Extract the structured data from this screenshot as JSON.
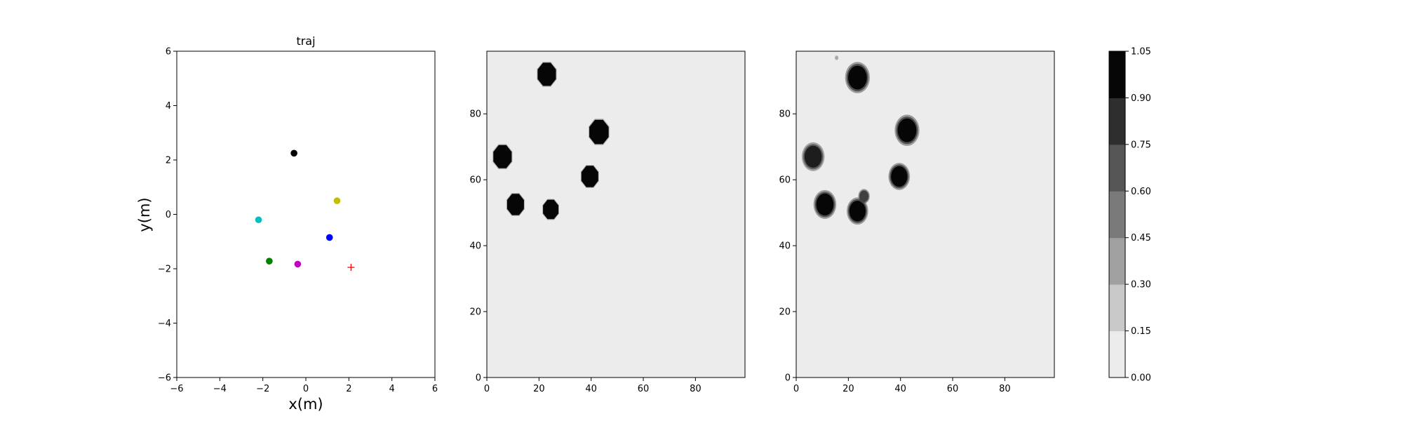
{
  "chart_data": [
    {
      "type": "scatter",
      "title": "traj",
      "xlabel": "x(m)",
      "ylabel": "y(m)",
      "xlim": [
        -6,
        6
      ],
      "ylim": [
        -6,
        6
      ],
      "xticks": [
        -6,
        -4,
        -2,
        0,
        2,
        4,
        6
      ],
      "yticks": [
        -6,
        -4,
        -2,
        0,
        2,
        4,
        6
      ],
      "grid": false,
      "points": [
        {
          "x": -0.55,
          "y": 2.25,
          "color": "#000000",
          "marker": "circle"
        },
        {
          "x": 1.45,
          "y": 0.5,
          "color": "#bfbf00",
          "marker": "circle"
        },
        {
          "x": -2.2,
          "y": -0.2,
          "color": "#00bfbf",
          "marker": "circle"
        },
        {
          "x": 1.1,
          "y": -0.85,
          "color": "#0000ff",
          "marker": "circle"
        },
        {
          "x": -1.7,
          "y": -1.72,
          "color": "#008000",
          "marker": "circle"
        },
        {
          "x": -0.38,
          "y": -1.83,
          "color": "#bf00bf",
          "marker": "circle"
        },
        {
          "x": 2.1,
          "y": -1.95,
          "color": "#ff0000",
          "marker": "plus"
        }
      ]
    },
    {
      "type": "heatmap",
      "xlim": [
        0,
        99
      ],
      "ylim": [
        0,
        99
      ],
      "xticks": [
        0,
        20,
        40,
        60,
        80
      ],
      "yticks": [
        0,
        20,
        40,
        60,
        80
      ],
      "background_value": 0.08,
      "blobs": [
        {
          "x": 23,
          "y": 92,
          "r": 3.8,
          "value": 1.0
        },
        {
          "x": 43,
          "y": 74.5,
          "r": 4.0,
          "value": 1.0
        },
        {
          "x": 6,
          "y": 67,
          "r": 3.8,
          "value": 1.0
        },
        {
          "x": 39.5,
          "y": 61,
          "r": 3.5,
          "value": 1.0
        },
        {
          "x": 11,
          "y": 52.5,
          "r": 3.5,
          "value": 1.0
        },
        {
          "x": 24.5,
          "y": 51,
          "r": 3.2,
          "value": 1.0
        }
      ]
    },
    {
      "type": "heatmap",
      "xlim": [
        0,
        99
      ],
      "ylim": [
        0,
        99
      ],
      "xticks": [
        0,
        20,
        40,
        60,
        80
      ],
      "yticks": [
        0,
        20,
        40,
        60,
        80
      ],
      "background_value": 0.08,
      "blobs": [
        {
          "x": 23.5,
          "y": 91,
          "r": 3.8,
          "value": 1.0
        },
        {
          "x": 42.5,
          "y": 75,
          "r": 3.8,
          "value": 1.0
        },
        {
          "x": 6.5,
          "y": 67,
          "r": 3.5,
          "value": 0.9
        },
        {
          "x": 39.5,
          "y": 61,
          "r": 3.3,
          "value": 1.0
        },
        {
          "x": 11,
          "y": 52.5,
          "r": 3.5,
          "value": 1.0
        },
        {
          "x": 23.5,
          "y": 50.5,
          "r": 3.3,
          "value": 1.0
        },
        {
          "x": 26,
          "y": 55,
          "r": 1.8,
          "value": 0.75
        },
        {
          "x": 15.5,
          "y": 97,
          "r": 0.6,
          "value": 0.3
        }
      ]
    }
  ],
  "colorbar": {
    "min": 0.0,
    "max": 1.05,
    "ticks": [
      "0.00",
      "0.15",
      "0.30",
      "0.45",
      "0.60",
      "0.75",
      "0.90",
      "1.05"
    ],
    "colors": [
      "#ececec",
      "#c8c8c8",
      "#a0a0a0",
      "#7a7a7a",
      "#555555",
      "#2e2e2e",
      "#060606"
    ]
  }
}
